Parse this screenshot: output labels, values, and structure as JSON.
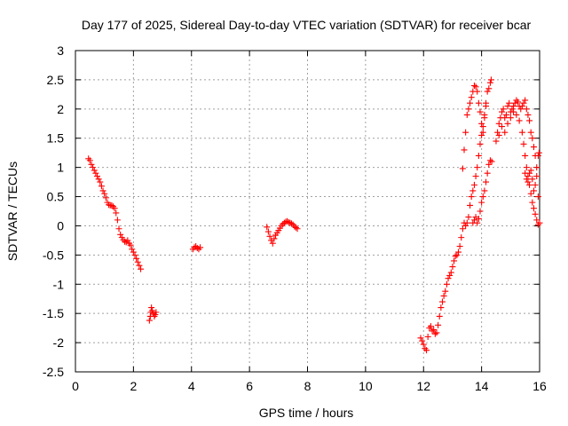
{
  "chart_data": {
    "type": "scatter",
    "title": "Day 177 of 2025, Sidereal Day-to-day VTEC variation (SDTVAR) for receiver bcar",
    "xlabel": "GPS time / hours",
    "ylabel": "SDTVAR / TECUs",
    "xlim": [
      0,
      16
    ],
    "ylim": [
      -2.5,
      3
    ],
    "xticks": [
      "0",
      "2",
      "4",
      "6",
      "8",
      "10",
      "12",
      "14",
      "16"
    ],
    "yticks": [
      "-2.5",
      "-2",
      "-1.5",
      "-1",
      "-0.5",
      "0",
      "0.5",
      "1",
      "1.5",
      "2",
      "2.5",
      "3"
    ],
    "grid": true,
    "marker": "plus",
    "color": "#ff0000",
    "series": [
      {
        "name": "SDTVAR",
        "points": [
          [
            0.45,
            1.15
          ],
          [
            0.5,
            1.12
          ],
          [
            0.55,
            1.05
          ],
          [
            0.6,
            1.0
          ],
          [
            0.65,
            0.95
          ],
          [
            0.7,
            0.9
          ],
          [
            0.75,
            0.85
          ],
          [
            0.8,
            0.8
          ],
          [
            0.85,
            0.75
          ],
          [
            0.9,
            0.68
          ],
          [
            0.95,
            0.6
          ],
          [
            1.0,
            0.55
          ],
          [
            1.05,
            0.48
          ],
          [
            1.1,
            0.4
          ],
          [
            1.15,
            0.36
          ],
          [
            1.2,
            0.35
          ],
          [
            1.25,
            0.35
          ],
          [
            1.3,
            0.33
          ],
          [
            1.35,
            0.3
          ],
          [
            1.4,
            0.22
          ],
          [
            1.45,
            0.1
          ],
          [
            1.5,
            -0.05
          ],
          [
            1.55,
            -0.15
          ],
          [
            1.6,
            -0.2
          ],
          [
            1.65,
            -0.24
          ],
          [
            1.7,
            -0.27
          ],
          [
            1.75,
            -0.28
          ],
          [
            1.8,
            -0.25
          ],
          [
            1.85,
            -0.3
          ],
          [
            1.9,
            -0.33
          ],
          [
            1.95,
            -0.4
          ],
          [
            2.0,
            -0.45
          ],
          [
            2.05,
            -0.5
          ],
          [
            2.1,
            -0.56
          ],
          [
            2.15,
            -0.62
          ],
          [
            2.2,
            -0.68
          ],
          [
            2.25,
            -0.74
          ],
          [
            2.55,
            -1.62
          ],
          [
            2.58,
            -1.55
          ],
          [
            2.6,
            -1.48
          ],
          [
            2.62,
            -1.4
          ],
          [
            2.65,
            -1.45
          ],
          [
            2.68,
            -1.5
          ],
          [
            2.72,
            -1.55
          ],
          [
            2.75,
            -1.52
          ],
          [
            2.78,
            -1.48
          ],
          [
            4.05,
            -0.4
          ],
          [
            4.1,
            -0.37
          ],
          [
            4.15,
            -0.35
          ],
          [
            4.2,
            -0.38
          ],
          [
            4.25,
            -0.4
          ],
          [
            4.3,
            -0.37
          ],
          [
            6.6,
            -0.02
          ],
          [
            6.65,
            -0.1
          ],
          [
            6.7,
            -0.18
          ],
          [
            6.75,
            -0.25
          ],
          [
            6.8,
            -0.3
          ],
          [
            6.85,
            -0.22
          ],
          [
            6.9,
            -0.16
          ],
          [
            6.95,
            -0.12
          ],
          [
            7.0,
            -0.08
          ],
          [
            7.05,
            -0.04
          ],
          [
            7.1,
            0.0
          ],
          [
            7.15,
            0.03
          ],
          [
            7.2,
            0.05
          ],
          [
            7.25,
            0.07
          ],
          [
            7.3,
            0.08
          ],
          [
            7.35,
            0.06
          ],
          [
            7.4,
            0.05
          ],
          [
            7.45,
            0.04
          ],
          [
            7.5,
            0.02
          ],
          [
            7.55,
            -0.01
          ],
          [
            7.6,
            -0.03
          ],
          [
            7.65,
            -0.05
          ],
          [
            11.9,
            -1.92
          ],
          [
            11.95,
            -1.97
          ],
          [
            12.0,
            -2.03
          ],
          [
            12.05,
            -2.1
          ],
          [
            12.1,
            -2.13
          ],
          [
            12.15,
            -1.9
          ],
          [
            12.2,
            -1.75
          ],
          [
            12.25,
            -1.72
          ],
          [
            12.3,
            -1.8
          ],
          [
            12.35,
            -1.78
          ],
          [
            12.4,
            -1.85
          ],
          [
            12.45,
            -1.83
          ],
          [
            12.5,
            -1.7
          ],
          [
            12.55,
            -1.55
          ],
          [
            12.6,
            -1.4
          ],
          [
            12.65,
            -1.3
          ],
          [
            12.7,
            -1.2
          ],
          [
            12.75,
            -1.12
          ],
          [
            12.8,
            -1.0
          ],
          [
            12.85,
            -0.9
          ],
          [
            12.9,
            -0.85
          ],
          [
            12.95,
            -0.8
          ],
          [
            13.0,
            -0.7
          ],
          [
            13.05,
            -0.6
          ],
          [
            13.1,
            -0.52
          ],
          [
            13.15,
            -0.5
          ],
          [
            13.2,
            -0.45
          ],
          [
            13.25,
            -0.35
          ],
          [
            13.3,
            -0.2
          ],
          [
            13.35,
            -0.05
          ],
          [
            13.4,
            0.05
          ],
          [
            13.45,
            0.0
          ],
          [
            13.5,
            0.05
          ],
          [
            13.55,
            0.15
          ],
          [
            13.6,
            0.35
          ],
          [
            13.65,
            0.5
          ],
          [
            13.7,
            0.6
          ],
          [
            13.75,
            0.7
          ],
          [
            13.8,
            0.85
          ],
          [
            13.85,
            1.0
          ],
          [
            13.9,
            1.2
          ],
          [
            13.95,
            1.4
          ],
          [
            14.0,
            1.55
          ],
          [
            14.05,
            1.7
          ],
          [
            14.1,
            1.85
          ],
          [
            14.15,
            2.05
          ],
          [
            14.2,
            2.3
          ],
          [
            14.25,
            2.35
          ],
          [
            14.3,
            2.45
          ],
          [
            14.33,
            2.5
          ],
          [
            13.35,
            0.98
          ],
          [
            13.4,
            1.3
          ],
          [
            13.45,
            1.6
          ],
          [
            13.5,
            1.9
          ],
          [
            13.55,
            2.0
          ],
          [
            13.6,
            2.1
          ],
          [
            13.65,
            2.2
          ],
          [
            13.7,
            2.3
          ],
          [
            13.75,
            2.4
          ],
          [
            13.8,
            2.38
          ],
          [
            13.85,
            2.3
          ],
          [
            13.9,
            2.1
          ],
          [
            13.95,
            1.95
          ],
          [
            14.0,
            1.75
          ],
          [
            14.05,
            1.6
          ],
          [
            14.1,
            1.9
          ],
          [
            14.15,
            2.1
          ],
          [
            13.7,
            0.05
          ],
          [
            13.75,
            0.1
          ],
          [
            13.8,
            0.15
          ],
          [
            13.85,
            0.05
          ],
          [
            13.9,
            0.12
          ],
          [
            13.95,
            0.25
          ],
          [
            14.0,
            0.4
          ],
          [
            14.05,
            0.5
          ],
          [
            14.1,
            0.6
          ],
          [
            14.15,
            0.75
          ],
          [
            14.2,
            0.9
          ],
          [
            14.25,
            1.05
          ],
          [
            14.3,
            1.12
          ],
          [
            14.35,
            1.1
          ],
          [
            14.5,
            1.45
          ],
          [
            14.55,
            1.6
          ],
          [
            14.6,
            1.75
          ],
          [
            14.65,
            1.85
          ],
          [
            14.7,
            1.95
          ],
          [
            14.75,
            2.0
          ],
          [
            14.8,
            1.85
          ],
          [
            14.85,
            1.9
          ],
          [
            14.9,
            2.05
          ],
          [
            14.95,
            2.1
          ],
          [
            15.0,
            1.95
          ],
          [
            15.05,
            2.0
          ],
          [
            15.1,
            2.05
          ],
          [
            15.15,
            2.1
          ],
          [
            15.2,
            2.15
          ],
          [
            15.25,
            2.12
          ],
          [
            15.3,
            2.05
          ],
          [
            15.35,
            2.0
          ],
          [
            15.4,
            2.05
          ],
          [
            15.45,
            2.1
          ],
          [
            15.5,
            2.15
          ],
          [
            15.55,
            2.0
          ],
          [
            15.6,
            1.9
          ],
          [
            15.65,
            1.8
          ],
          [
            15.7,
            1.6
          ],
          [
            15.75,
            1.5
          ],
          [
            15.8,
            1.35
          ],
          [
            15.85,
            1.2
          ],
          [
            15.9,
            1.0
          ],
          [
            15.95,
            0.5
          ],
          [
            16.0,
            0.05
          ],
          [
            14.6,
            1.55
          ],
          [
            14.7,
            1.7
          ],
          [
            14.8,
            1.6
          ],
          [
            14.9,
            1.75
          ],
          [
            15.0,
            1.85
          ],
          [
            15.1,
            1.95
          ],
          [
            15.2,
            1.9
          ],
          [
            15.3,
            1.8
          ],
          [
            15.4,
            1.6
          ],
          [
            15.45,
            1.4
          ],
          [
            15.5,
            1.2
          ],
          [
            15.55,
            1.0
          ],
          [
            15.6,
            0.85
          ],
          [
            15.65,
            0.7
          ],
          [
            15.7,
            0.55
          ],
          [
            15.75,
            0.4
          ],
          [
            15.8,
            0.3
          ],
          [
            15.85,
            0.2
          ],
          [
            15.9,
            0.1
          ],
          [
            15.95,
            0.02
          ],
          [
            15.5,
            0.9
          ],
          [
            15.55,
            0.8
          ],
          [
            15.6,
            0.75
          ],
          [
            15.65,
            0.9
          ],
          [
            15.7,
            0.95
          ],
          [
            15.75,
            0.8
          ],
          [
            15.8,
            0.6
          ],
          [
            15.85,
            0.7
          ],
          [
            15.9,
            0.85
          ],
          [
            15.95,
            1.2
          ],
          [
            15.98,
            1.25
          ]
        ]
      }
    ]
  }
}
